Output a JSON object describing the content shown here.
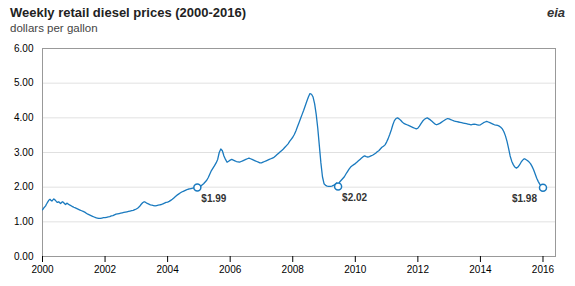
{
  "chart_data": {
    "type": "line",
    "title": "Weekly retail diesel prices (2000-2016)",
    "subtitle": "dollars per gallon",
    "logo": "eia",
    "color": "#1a7abf",
    "grid": "y",
    "xlim": [
      2000,
      2016.4
    ],
    "xticks": [
      2000,
      2002,
      2004,
      2006,
      2008,
      2010,
      2012,
      2014,
      2016
    ],
    "ylim": [
      0.0,
      6.0
    ],
    "yticks": [
      {
        "value": 0.0,
        "label": "0.00"
      },
      {
        "value": 1.0,
        "label": "1.00"
      },
      {
        "value": 2.0,
        "label": "2.00"
      },
      {
        "value": 3.0,
        "label": "3.00"
      },
      {
        "value": 4.0,
        "label": "4.00"
      },
      {
        "value": 5.0,
        "label": "5.00"
      },
      {
        "value": 6.0,
        "label": "6.00"
      }
    ],
    "annotations": [
      {
        "x": 2004.95,
        "y": 1.99,
        "label": "$1.99"
      },
      {
        "x": 2009.45,
        "y": 2.02,
        "label": "$2.02"
      },
      {
        "x": 2016.0,
        "y": 1.98,
        "label": "$1.98"
      }
    ],
    "x": [
      2000.0,
      2000.02,
      2000.04,
      2000.06,
      2000.08,
      2000.1,
      2000.12,
      2000.14,
      2000.16,
      2000.18,
      2000.2,
      2000.22,
      2000.24,
      2000.26,
      2000.28,
      2000.3,
      2000.32,
      2000.34,
      2000.36,
      2000.38,
      2000.4,
      2000.42,
      2000.44,
      2000.46,
      2000.48,
      2000.5,
      2000.52,
      2000.54,
      2000.56,
      2000.58,
      2000.6,
      2000.62,
      2000.64,
      2000.66,
      2000.68,
      2000.7,
      2000.72,
      2000.74,
      2000.76,
      2000.78,
      2000.8,
      2000.82,
      2000.84,
      2000.86,
      2000.88,
      2000.9,
      2000.92,
      2000.94,
      2000.96,
      2000.98,
      2001.0,
      2001.05,
      2001.1,
      2001.15,
      2001.2,
      2001.25,
      2001.3,
      2001.35,
      2001.4,
      2001.45,
      2001.5,
      2001.55,
      2001.6,
      2001.65,
      2001.7,
      2001.75,
      2001.8,
      2001.85,
      2001.9,
      2001.95,
      2002.0,
      2002.05,
      2002.1,
      2002.15,
      2002.2,
      2002.25,
      2002.3,
      2002.35,
      2002.4,
      2002.45,
      2002.5,
      2002.55,
      2002.6,
      2002.65,
      2002.7,
      2002.75,
      2002.8,
      2002.85,
      2002.9,
      2002.95,
      2003.0,
      2003.05,
      2003.1,
      2003.15,
      2003.2,
      2003.25,
      2003.3,
      2003.35,
      2003.4,
      2003.45,
      2003.5,
      2003.55,
      2003.6,
      2003.65,
      2003.7,
      2003.75,
      2003.8,
      2003.85,
      2003.9,
      2003.95,
      2004.0,
      2004.05,
      2004.1,
      2004.15,
      2004.2,
      2004.25,
      2004.3,
      2004.35,
      2004.4,
      2004.45,
      2004.5,
      2004.55,
      2004.6,
      2004.65,
      2004.7,
      2004.75,
      2004.8,
      2004.85,
      2004.9,
      2004.95,
      2005.0,
      2005.05,
      2005.1,
      2005.15,
      2005.2,
      2005.25,
      2005.3,
      2005.35,
      2005.4,
      2005.45,
      2005.5,
      2005.55,
      2005.6,
      2005.65,
      2005.7,
      2005.75,
      2005.8,
      2005.85,
      2005.9,
      2005.95,
      2006.0,
      2006.05,
      2006.1,
      2006.15,
      2006.2,
      2006.25,
      2006.3,
      2006.35,
      2006.4,
      2006.45,
      2006.5,
      2006.55,
      2006.6,
      2006.65,
      2006.7,
      2006.75,
      2006.8,
      2006.85,
      2006.9,
      2006.95,
      2007.0,
      2007.05,
      2007.1,
      2007.15,
      2007.2,
      2007.25,
      2007.3,
      2007.35,
      2007.4,
      2007.45,
      2007.5,
      2007.55,
      2007.6,
      2007.65,
      2007.7,
      2007.75,
      2007.8,
      2007.85,
      2007.9,
      2007.95,
      2008.0,
      2008.05,
      2008.1,
      2008.15,
      2008.2,
      2008.25,
      2008.3,
      2008.35,
      2008.4,
      2008.45,
      2008.5,
      2008.55,
      2008.6,
      2008.65,
      2008.7,
      2008.75,
      2008.8,
      2008.85,
      2008.9,
      2008.95,
      2009.0,
      2009.05,
      2009.1,
      2009.15,
      2009.2,
      2009.25,
      2009.3,
      2009.35,
      2009.4,
      2009.45,
      2009.5,
      2009.55,
      2009.6,
      2009.65,
      2009.7,
      2009.75,
      2009.8,
      2009.85,
      2009.9,
      2009.95,
      2010.0,
      2010.05,
      2010.1,
      2010.15,
      2010.2,
      2010.25,
      2010.3,
      2010.35,
      2010.4,
      2010.45,
      2010.5,
      2010.55,
      2010.6,
      2010.65,
      2010.7,
      2010.75,
      2010.8,
      2010.85,
      2010.9,
      2010.95,
      2011.0,
      2011.05,
      2011.1,
      2011.15,
      2011.2,
      2011.25,
      2011.3,
      2011.35,
      2011.4,
      2011.45,
      2011.5,
      2011.55,
      2011.6,
      2011.65,
      2011.7,
      2011.75,
      2011.8,
      2011.85,
      2011.9,
      2011.95,
      2012.0,
      2012.05,
      2012.1,
      2012.15,
      2012.2,
      2012.25,
      2012.3,
      2012.35,
      2012.4,
      2012.45,
      2012.5,
      2012.55,
      2012.6,
      2012.65,
      2012.7,
      2012.75,
      2012.8,
      2012.85,
      2012.9,
      2012.95,
      2013.0,
      2013.05,
      2013.1,
      2013.15,
      2013.2,
      2013.25,
      2013.3,
      2013.35,
      2013.4,
      2013.45,
      2013.5,
      2013.55,
      2013.6,
      2013.65,
      2013.7,
      2013.75,
      2013.8,
      2013.85,
      2013.9,
      2013.95,
      2014.0,
      2014.05,
      2014.1,
      2014.15,
      2014.2,
      2014.25,
      2014.3,
      2014.35,
      2014.4,
      2014.45,
      2014.5,
      2014.55,
      2014.6,
      2014.65,
      2014.7,
      2014.75,
      2014.8,
      2014.85,
      2014.9,
      2014.95,
      2015.0,
      2015.05,
      2015.1,
      2015.15,
      2015.2,
      2015.25,
      2015.3,
      2015.35,
      2015.4,
      2015.45,
      2015.5,
      2015.55,
      2015.6,
      2015.65,
      2015.7,
      2015.75,
      2015.8,
      2015.85,
      2015.9,
      2015.95,
      2016.0
    ],
    "values": [
      1.35,
      1.37,
      1.4,
      1.42,
      1.44,
      1.46,
      1.5,
      1.53,
      1.56,
      1.59,
      1.62,
      1.64,
      1.65,
      1.63,
      1.61,
      1.6,
      1.62,
      1.64,
      1.66,
      1.65,
      1.63,
      1.61,
      1.59,
      1.57,
      1.56,
      1.57,
      1.58,
      1.56,
      1.54,
      1.53,
      1.55,
      1.57,
      1.58,
      1.57,
      1.55,
      1.53,
      1.51,
      1.5,
      1.52,
      1.54,
      1.53,
      1.51,
      1.5,
      1.49,
      1.48,
      1.47,
      1.46,
      1.45,
      1.44,
      1.43,
      1.42,
      1.4,
      1.38,
      1.36,
      1.34,
      1.32,
      1.3,
      1.28,
      1.25,
      1.22,
      1.2,
      1.18,
      1.16,
      1.14,
      1.12,
      1.11,
      1.1,
      1.1,
      1.11,
      1.12,
      1.12,
      1.13,
      1.14,
      1.15,
      1.17,
      1.18,
      1.2,
      1.22,
      1.23,
      1.24,
      1.25,
      1.26,
      1.27,
      1.28,
      1.29,
      1.3,
      1.31,
      1.32,
      1.33,
      1.35,
      1.37,
      1.4,
      1.44,
      1.5,
      1.55,
      1.58,
      1.56,
      1.53,
      1.51,
      1.49,
      1.48,
      1.47,
      1.46,
      1.47,
      1.48,
      1.49,
      1.5,
      1.52,
      1.54,
      1.56,
      1.57,
      1.59,
      1.62,
      1.65,
      1.69,
      1.73,
      1.77,
      1.8,
      1.83,
      1.86,
      1.88,
      1.9,
      1.92,
      1.94,
      1.95,
      1.96,
      1.97,
      1.98,
      1.99,
      1.99,
      2.0,
      2.02,
      2.06,
      2.1,
      2.15,
      2.2,
      2.28,
      2.38,
      2.48,
      2.55,
      2.62,
      2.7,
      2.8,
      3.0,
      3.1,
      3.05,
      2.9,
      2.8,
      2.72,
      2.75,
      2.78,
      2.8,
      2.78,
      2.76,
      2.74,
      2.73,
      2.72,
      2.74,
      2.76,
      2.78,
      2.8,
      2.82,
      2.84,
      2.82,
      2.8,
      2.78,
      2.76,
      2.74,
      2.72,
      2.7,
      2.7,
      2.72,
      2.74,
      2.76,
      2.78,
      2.8,
      2.82,
      2.84,
      2.86,
      2.9,
      2.94,
      2.98,
      3.02,
      3.06,
      3.1,
      3.15,
      3.2,
      3.25,
      3.32,
      3.38,
      3.44,
      3.52,
      3.62,
      3.74,
      3.86,
      3.98,
      4.1,
      4.22,
      4.35,
      4.48,
      4.6,
      4.7,
      4.68,
      4.6,
      4.4,
      4.1,
      3.7,
      3.2,
      2.7,
      2.3,
      2.1,
      2.05,
      2.03,
      2.02,
      2.02,
      2.03,
      2.05,
      2.08,
      2.12,
      2.02,
      2.15,
      2.2,
      2.25,
      2.3,
      2.38,
      2.45,
      2.52,
      2.58,
      2.62,
      2.65,
      2.68,
      2.72,
      2.76,
      2.8,
      2.84,
      2.88,
      2.9,
      2.88,
      2.87,
      2.88,
      2.9,
      2.92,
      2.95,
      2.98,
      3.02,
      3.05,
      3.1,
      3.15,
      3.18,
      3.22,
      3.3,
      3.4,
      3.52,
      3.65,
      3.8,
      3.92,
      3.98,
      4.0,
      3.97,
      3.93,
      3.88,
      3.84,
      3.82,
      3.8,
      3.78,
      3.76,
      3.74,
      3.72,
      3.7,
      3.68,
      3.7,
      3.76,
      3.83,
      3.9,
      3.95,
      3.98,
      4.0,
      3.97,
      3.94,
      3.9,
      3.86,
      3.82,
      3.8,
      3.82,
      3.84,
      3.87,
      3.9,
      3.93,
      3.96,
      3.98,
      3.97,
      3.95,
      3.93,
      3.91,
      3.9,
      3.89,
      3.88,
      3.87,
      3.86,
      3.85,
      3.84,
      3.83,
      3.82,
      3.81,
      3.8,
      3.81,
      3.82,
      3.81,
      3.8,
      3.79,
      3.8,
      3.83,
      3.86,
      3.88,
      3.9,
      3.88,
      3.86,
      3.84,
      3.82,
      3.8,
      3.79,
      3.78,
      3.76,
      3.73,
      3.68,
      3.6,
      3.48,
      3.32,
      3.12,
      2.9,
      2.75,
      2.65,
      2.58,
      2.55,
      2.58,
      2.64,
      2.72,
      2.78,
      2.82,
      2.8,
      2.77,
      2.73,
      2.68,
      2.6,
      2.5,
      2.38,
      2.26,
      2.16,
      2.08,
      2.02,
      1.98
    ]
  }
}
